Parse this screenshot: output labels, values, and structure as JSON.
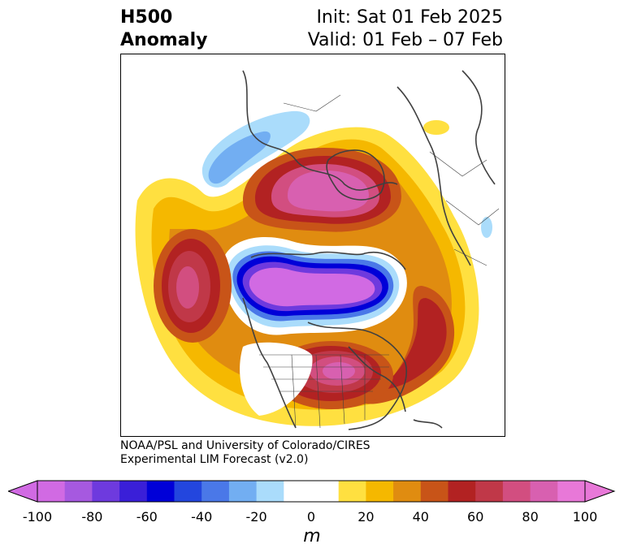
{
  "title": {
    "left_line1": "H500",
    "left_line2": "Anomaly",
    "right_line1": "Init: Sat 01 Feb 2025",
    "right_line2": "Valid: 01 Feb – 07 Feb"
  },
  "credit": {
    "line1": "NOAA/PSL and University of Colorado/CIRES",
    "line2": "Experimental LIM Forecast (v2.0)"
  },
  "colorbar": {
    "unit": "m",
    "ticks": [
      "-100",
      "-80",
      "-60",
      "-40",
      "-20",
      "0",
      "20",
      "40",
      "60",
      "80",
      "100"
    ],
    "levels": [
      -100,
      -90,
      -80,
      -70,
      -60,
      -50,
      -40,
      -30,
      -20,
      -10,
      10,
      20,
      30,
      40,
      50,
      60,
      70,
      80,
      90,
      100
    ],
    "colors": [
      "#d16ae3",
      "#a659e0",
      "#6e3ade",
      "#3a1fd8",
      "#0000d8",
      "#2346de",
      "#4a78e8",
      "#72aef2",
      "#aadcfb",
      "#ffffff",
      "#ffffff",
      "#ffe040",
      "#f5b800",
      "#e08c10",
      "#c85418",
      "#b22222",
      "#c03848",
      "#d24e80",
      "#d860b0",
      "#e878d8"
    ],
    "extend_low_color": "#d16ae3",
    "extend_high_color": "#e878d8"
  },
  "map": {
    "projection": "north-polar-orthographic",
    "features": [
      "coastlines",
      "country-borders",
      "state-borders"
    ]
  }
}
